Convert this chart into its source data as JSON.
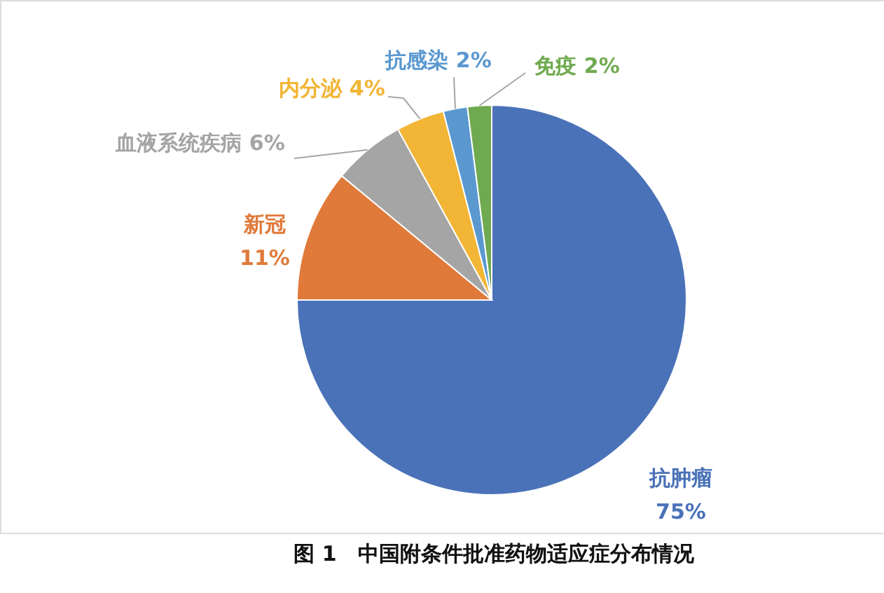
{
  "chart_data": {
    "type": "pie",
    "title": "图 1　中国附条件批准药物适应症分布情况",
    "categories": [
      "抗肿瘤",
      "新冠",
      "血液系统疾病",
      "内分泌",
      "抗感染",
      "免疫"
    ],
    "values": [
      75,
      11,
      6,
      4,
      2,
      2
    ],
    "colors": [
      "#4a72b8",
      "#e07a3a",
      "#a5a5a5",
      "#f2b535",
      "#5b98d0",
      "#70aa50"
    ],
    "value_labels": [
      "75%",
      "11%",
      "6%",
      "4%",
      "2%",
      "2%"
    ]
  }
}
